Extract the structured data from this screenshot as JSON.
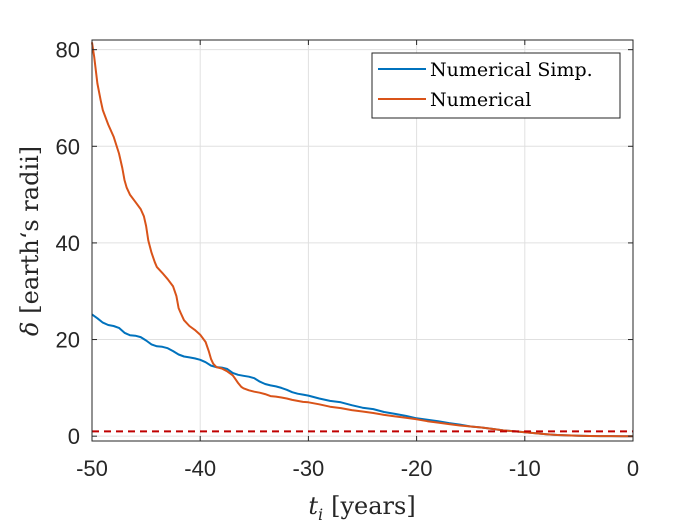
{
  "chart_data": {
    "type": "line",
    "title": "",
    "xlabel_symbol": "t",
    "xlabel_subscript": "i",
    "xlabel_unit": "[years]",
    "ylabel_symbol": "δ",
    "ylabel_unit": "[earth‘s radii]",
    "xlim": [
      -50,
      0
    ],
    "ylim": [
      -1,
      82
    ],
    "xticks": [
      -50,
      -40,
      -30,
      -20,
      -10,
      0
    ],
    "yticks": [
      0,
      20,
      40,
      60,
      80
    ],
    "xtick_labels": [
      "-50",
      "-40",
      "-30",
      "-20",
      "-10",
      "0"
    ],
    "ytick_labels": [
      "0",
      "20",
      "40",
      "60",
      "80"
    ],
    "grid": true,
    "legend_position": "top-right",
    "series": [
      {
        "name": "Numerical Simp.",
        "color": "#0072BD",
        "x": [
          -50,
          -49.5,
          -49,
          -48.5,
          -48,
          -47.5,
          -47,
          -46.5,
          -46,
          -45.5,
          -45,
          -44.5,
          -44,
          -43.5,
          -43,
          -42.5,
          -42,
          -41.5,
          -41,
          -40.5,
          -40,
          -39.5,
          -39,
          -38.5,
          -38,
          -37.5,
          -37,
          -36.5,
          -36,
          -35.5,
          -35,
          -34.5,
          -34,
          -33.5,
          -33,
          -32.5,
          -32,
          -31.5,
          -31,
          -30.5,
          -30,
          -29,
          -28,
          -27,
          -26,
          -25,
          -24,
          -23,
          -22,
          -21,
          -20,
          -19,
          -18,
          -17,
          -16,
          -15,
          -14,
          -13,
          -12,
          -11,
          -10,
          -9,
          -8,
          -7,
          -6,
          -5,
          -4,
          -3,
          -2,
          -1,
          0
        ],
        "values": [
          25.2,
          24.4,
          23.5,
          23.0,
          22.8,
          22.4,
          21.4,
          20.9,
          20.8,
          20.5,
          19.8,
          19.0,
          18.6,
          18.5,
          18.2,
          17.6,
          16.9,
          16.5,
          16.3,
          16.1,
          15.8,
          15.3,
          14.6,
          14.3,
          14.2,
          13.9,
          13.1,
          12.7,
          12.5,
          12.3,
          12.0,
          11.3,
          10.8,
          10.5,
          10.3,
          10.0,
          9.6,
          9.1,
          8.8,
          8.6,
          8.4,
          7.8,
          7.3,
          7.0,
          6.4,
          5.9,
          5.6,
          5.0,
          4.6,
          4.2,
          3.7,
          3.4,
          3.1,
          2.7,
          2.4,
          2.0,
          1.8,
          1.5,
          1.2,
          1.0,
          0.8,
          0.6,
          0.4,
          0.25,
          0.15,
          0.08,
          0.04,
          0.02,
          0.01,
          0.0,
          0.0
        ]
      },
      {
        "name": "Numerical",
        "color": "#D95319",
        "x": [
          -50,
          -49.8,
          -49.5,
          -49.2,
          -49,
          -48.5,
          -48,
          -47.5,
          -47.2,
          -47,
          -46.8,
          -46.5,
          -46,
          -45.5,
          -45.2,
          -45,
          -44.8,
          -44.5,
          -44.2,
          -44,
          -43.5,
          -43,
          -42.5,
          -42.2,
          -42,
          -41.8,
          -41.5,
          -41,
          -40.5,
          -40,
          -39.5,
          -39.2,
          -39,
          -38.8,
          -38.5,
          -38,
          -37.5,
          -37,
          -36.8,
          -36.5,
          -36.2,
          -36,
          -35.5,
          -35,
          -34.5,
          -34,
          -33.5,
          -33,
          -32.5,
          -32,
          -31.5,
          -31,
          -30.5,
          -30,
          -29,
          -28,
          -27,
          -26,
          -25,
          -24,
          -23,
          -22,
          -21,
          -20,
          -19,
          -18,
          -17,
          -16,
          -15,
          -14,
          -13,
          -12,
          -11,
          -10,
          -9,
          -8,
          -7,
          -6,
          -5,
          -4,
          -3,
          -2,
          -1,
          0
        ],
        "values": [
          81.5,
          78.5,
          73.0,
          69.5,
          67.5,
          64.5,
          62.0,
          58.5,
          55.5,
          53.0,
          51.5,
          50.0,
          48.5,
          47.0,
          45.5,
          43.5,
          40.5,
          38.0,
          36.0,
          35.0,
          33.8,
          32.5,
          31.0,
          29.0,
          26.5,
          25.5,
          24.0,
          22.8,
          22.0,
          21.0,
          19.5,
          17.5,
          16.0,
          15.0,
          14.3,
          14.0,
          13.4,
          12.6,
          12.0,
          11.0,
          10.2,
          9.9,
          9.5,
          9.2,
          9.0,
          8.7,
          8.3,
          8.2,
          8.0,
          7.8,
          7.5,
          7.3,
          7.1,
          7.0,
          6.6,
          6.1,
          5.8,
          5.4,
          5.1,
          4.8,
          4.4,
          4.1,
          3.8,
          3.5,
          3.1,
          2.8,
          2.5,
          2.2,
          2.0,
          1.8,
          1.5,
          1.2,
          1.0,
          0.8,
          0.6,
          0.4,
          0.25,
          0.15,
          0.08,
          0.04,
          0.02,
          0.01,
          0.0,
          0.0
        ]
      }
    ],
    "reference_line": {
      "y": 1,
      "color": "#C00000",
      "style": "dashed"
    }
  }
}
